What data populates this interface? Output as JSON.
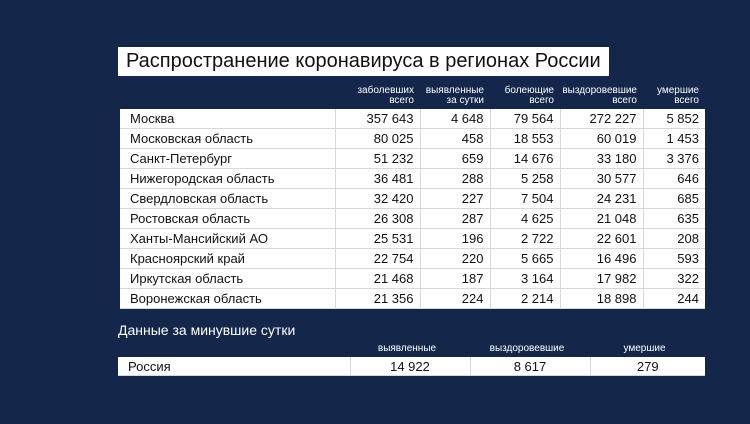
{
  "title": "Распространение коронавируса в регионах России",
  "table": {
    "headers": [
      [
        "заболевших",
        "всего"
      ],
      [
        "выявленные",
        "за сутки"
      ],
      [
        "болеющие",
        "всего"
      ],
      [
        "выздоровевшие",
        "всего"
      ],
      [
        "умершие",
        "всего"
      ]
    ],
    "rows": [
      [
        "Москва",
        "357 643",
        "4 648",
        "79 564",
        "272 227",
        "5 852"
      ],
      [
        "Московская область",
        "80 025",
        "458",
        "18 553",
        "60 019",
        "1 453"
      ],
      [
        "Санкт-Петербург",
        "51 232",
        "659",
        "14 676",
        "33 180",
        "3 376"
      ],
      [
        "Нижегородская область",
        "36 481",
        "288",
        "5 258",
        "30 577",
        "646"
      ],
      [
        "Свердловская область",
        "32 420",
        "227",
        "7 504",
        "24 231",
        "685"
      ],
      [
        "Ростовская область",
        "26 308",
        "287",
        "4 625",
        "21 048",
        "635"
      ],
      [
        "Ханты-Мансийский АО",
        "25 531",
        "196",
        "2 722",
        "22 601",
        "208"
      ],
      [
        "Красноярский край",
        "22 754",
        "220",
        "5 665",
        "16 496",
        "593"
      ],
      [
        "Иркутская область",
        "21 468",
        "187",
        "3 164",
        "17 982",
        "322"
      ],
      [
        "Воронежская область",
        "21 356",
        "224",
        "2 214",
        "18 898",
        "244"
      ]
    ]
  },
  "daily": {
    "subtitle": "Данные за минувшие сутки",
    "headers": [
      "выявленные",
      "выздоровевшие",
      "умершие"
    ],
    "rows": [
      [
        "Россия",
        "14 922",
        "8 617",
        "279"
      ]
    ]
  }
}
